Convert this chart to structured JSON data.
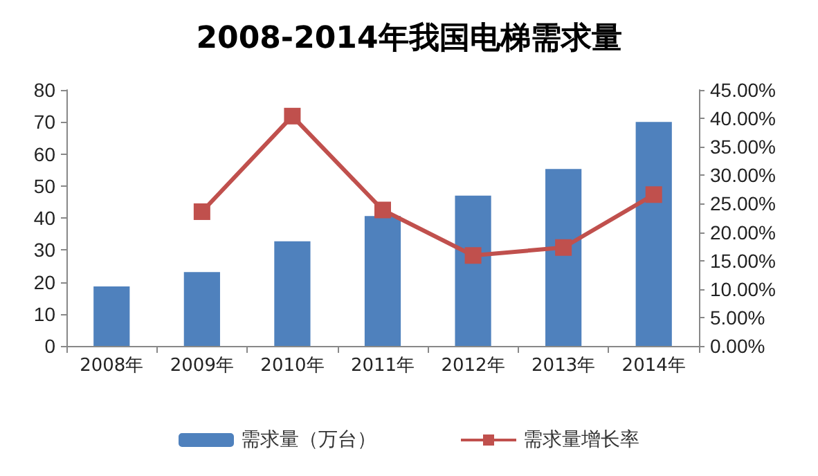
{
  "chart_data": {
    "type": "bar",
    "title": "2008-2014年我国电梯需求量",
    "categories": [
      "2008年",
      "2009年",
      "2010年",
      "2011年",
      "2012年",
      "2013年",
      "2014年"
    ],
    "series": [
      {
        "name": "需求量（万台）",
        "color": "#4f81bd",
        "values": [
          18.6,
          23.1,
          32.7,
          40.6,
          47,
          55.3,
          70
        ]
      },
      {
        "name": "需求量增长率",
        "type": "line",
        "axis": "y2",
        "color": "#c0504d",
        "marker": "square",
        "values": [
          null,
          23.6,
          40.4,
          23.9,
          15.9,
          17.3,
          26.6
        ]
      }
    ],
    "ylim": [
      0,
      80
    ],
    "yticks": [
      0,
      10,
      20,
      30,
      40,
      50,
      60,
      70,
      80
    ],
    "y2lim": [
      0,
      45
    ],
    "y2ticks": [
      {
        "value": 0,
        "label": "0.00%"
      },
      {
        "value": 5,
        "label": "5.00%"
      },
      {
        "value": 10,
        "label": "10.00%"
      },
      {
        "value": 15,
        "label": "15.00%"
      },
      {
        "value": 20,
        "label": "20.00%"
      },
      {
        "value": 25,
        "label": "25.00%"
      },
      {
        "value": 30,
        "label": "30.00%"
      },
      {
        "value": 35,
        "label": "35.00%"
      },
      {
        "value": 40,
        "label": "40.00%"
      },
      {
        "value": 45,
        "label": "45.00%"
      }
    ],
    "grid": false,
    "legend": "bottom"
  }
}
